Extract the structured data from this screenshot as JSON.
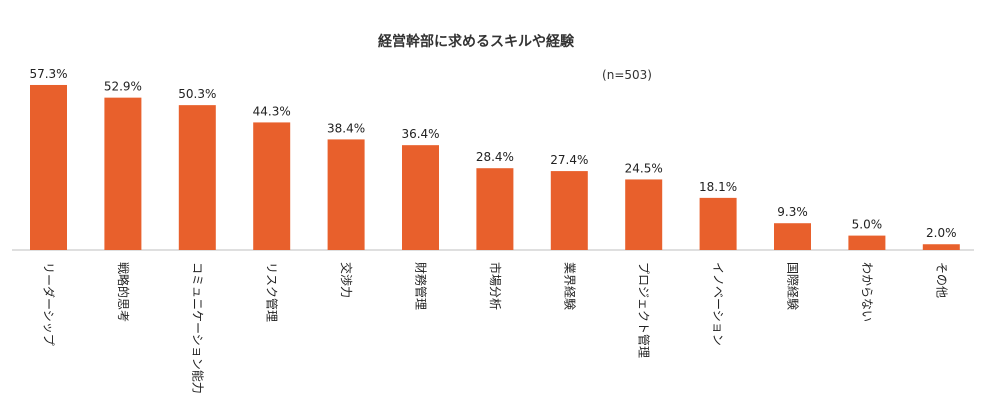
{
  "chart_data": {
    "type": "bar",
    "title": "経営幹部に求めるスキルや経験",
    "sample": "(n=503)",
    "xlabel": "",
    "ylabel": "",
    "ylim": [
      0,
      60
    ],
    "grid": false,
    "legend": "none",
    "bar_color": "#e8602c",
    "categories": [
      "リーダーシップ",
      "戦略的思考",
      "コミュニケーション能力",
      "リスク管理",
      "交渉力",
      "財務管理",
      "市場分析",
      "業界経験",
      "プロジェクト管理",
      "イノベーション",
      "国際経験",
      "わからない",
      "その他"
    ],
    "values": [
      57.3,
      52.9,
      50.3,
      44.3,
      38.4,
      36.4,
      28.4,
      27.4,
      24.5,
      18.1,
      9.3,
      5.0,
      2.0
    ],
    "value_labels": [
      "57.3%",
      "52.9%",
      "50.3%",
      "44.3%",
      "38.4%",
      "36.4%",
      "28.4%",
      "27.4%",
      "24.5%",
      "18.1%",
      "9.3%",
      "5.0%",
      "2.0%"
    ]
  }
}
